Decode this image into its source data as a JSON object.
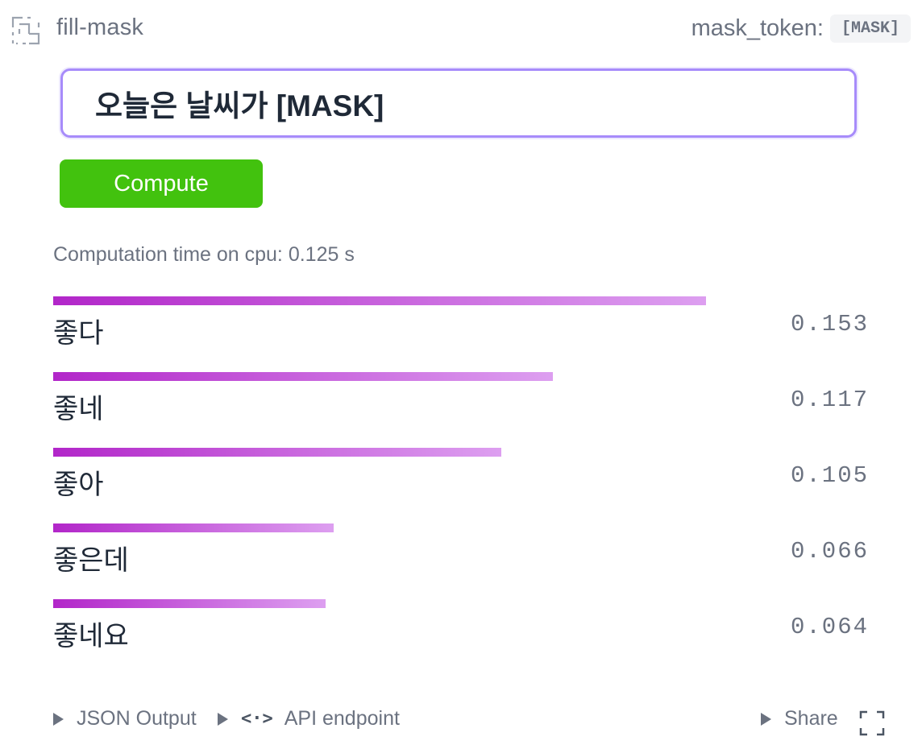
{
  "header": {
    "task_name": "fill-mask",
    "mask_token_label": "mask_token:",
    "mask_token_value": "[MASK]",
    "task_icon": "fill-mask-icon"
  },
  "input": {
    "value": "오늘은 날씨가 [MASK]"
  },
  "compute_label": "Compute",
  "computation_time": "Computation time on cpu: 0.125 s",
  "results": [
    {
      "label": "좋다",
      "score": "0.153",
      "value": 0.153
    },
    {
      "label": "좋네",
      "score": "0.117",
      "value": 0.117
    },
    {
      "label": "좋아",
      "score": "0.105",
      "value": 0.105
    },
    {
      "label": "좋은데",
      "score": "0.066",
      "value": 0.066
    },
    {
      "label": "좋네요",
      "score": "0.064",
      "value": 0.064
    }
  ],
  "footer": {
    "json_output": "JSON Output",
    "api_endpoint": "API endpoint",
    "share": "Share",
    "icons": [
      "play-triangle-icon",
      "code-icon",
      "fullscreen-icon"
    ]
  },
  "colors": {
    "accent_border": "#a78bfa",
    "compute_button": "#42c20e",
    "bar_start": "#b226c9",
    "bar_end": "#dd9ff0"
  }
}
